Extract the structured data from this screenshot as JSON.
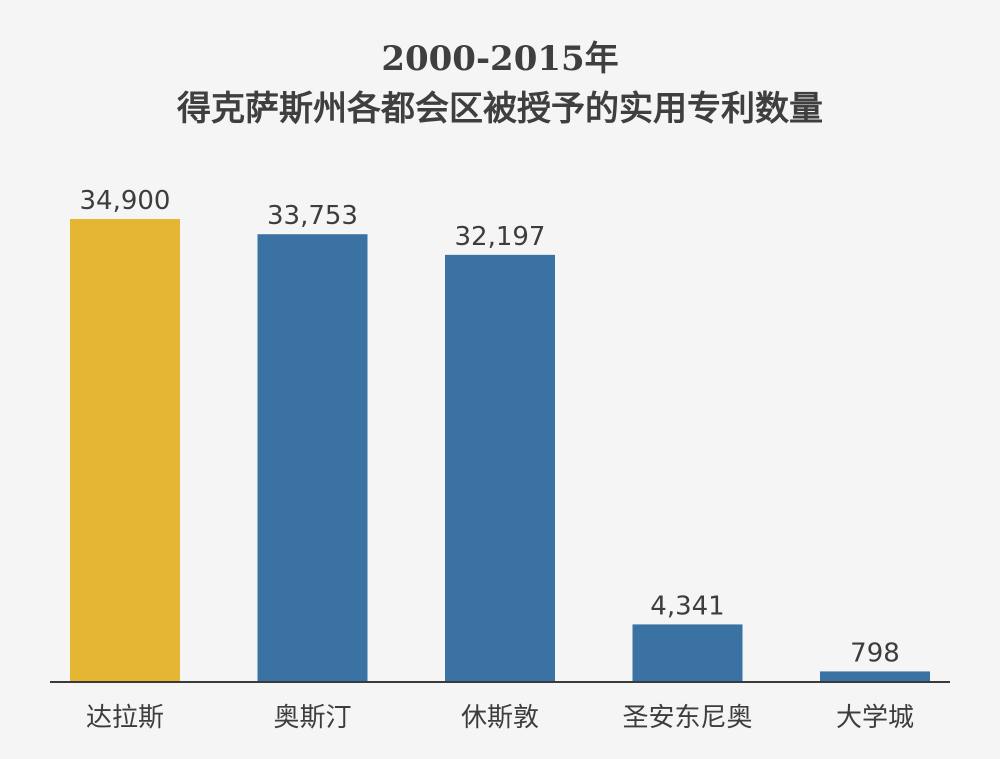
{
  "chart_data": {
    "type": "bar",
    "title": "2000-2015年",
    "subtitle": "得克萨斯州各都会区被授予的实用专利数量",
    "categories": [
      "达拉斯",
      "奥斯汀",
      "休斯敦",
      "圣安东尼奥",
      "大学城"
    ],
    "values": [
      34900,
      33753,
      32197,
      4341,
      798
    ],
    "value_labels": [
      "34,900",
      "33,753",
      "32,197",
      "4,341",
      "798"
    ],
    "ylim": [
      0,
      34900
    ],
    "grid": false,
    "colors": {
      "highlight": "#e4b634",
      "default": "#3a73a3",
      "axis": "#3a3a3a"
    },
    "highlight_index": 0
  }
}
